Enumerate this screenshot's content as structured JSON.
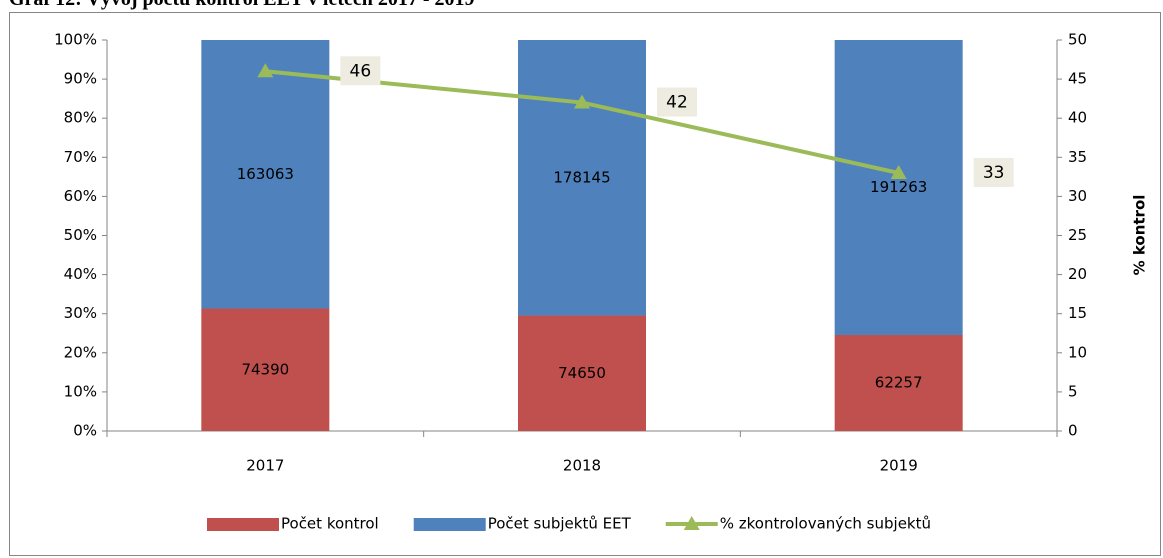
{
  "chart_data": {
    "type": "stacked_percent_bar_line",
    "title": "Graf 12: Vývoj počtu kontrol EET v letech 2017 - 2019",
    "categories": [
      "2017",
      "2018",
      "2019"
    ],
    "series": [
      {
        "name": "Počet kontrol",
        "color": "#c0504d",
        "values": [
          74390,
          74650,
          62257
        ]
      },
      {
        "name": "Počet subjektů EET",
        "color": "#4f81bd",
        "values": [
          163063,
          178145,
          191263
        ]
      },
      {
        "name": "% zkontrolovaných subjektů",
        "color": "#9bbb59",
        "values": [
          46,
          42,
          33
        ],
        "axis": "y2",
        "type": "line"
      }
    ],
    "ylim": [
      0,
      100
    ],
    "yticks": [
      {
        "value": 0,
        "label": "0%"
      },
      {
        "value": 10,
        "label": "10%"
      },
      {
        "value": 20,
        "label": "20%"
      },
      {
        "value": 30,
        "label": "30%"
      },
      {
        "value": 40,
        "label": "40%"
      },
      {
        "value": 50,
        "label": "50%"
      },
      {
        "value": 60,
        "label": "60%"
      },
      {
        "value": 70,
        "label": "70%"
      },
      {
        "value": 80,
        "label": "80%"
      },
      {
        "value": 90,
        "label": "90%"
      },
      {
        "value": 100,
        "label": "100%"
      }
    ],
    "y2lim": [
      0,
      50
    ],
    "y2ticks": [
      0,
      5,
      10,
      15,
      20,
      25,
      30,
      35,
      40,
      45,
      50
    ],
    "y2label": "% kontrol",
    "grid": false,
    "legend": "bottom"
  }
}
